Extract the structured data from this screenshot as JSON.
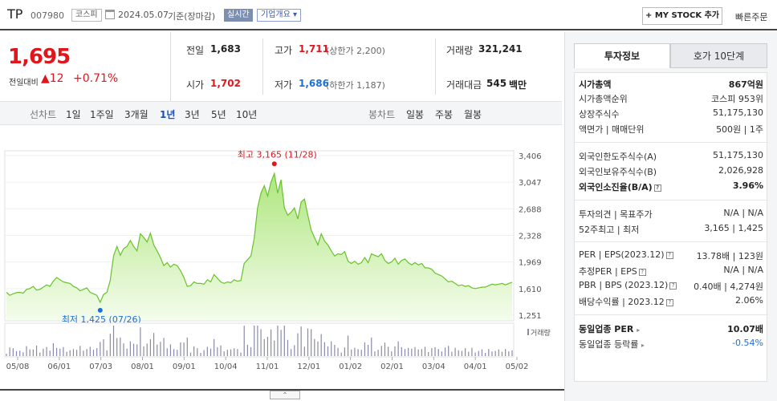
{
  "header": {
    "stock_name": "TP",
    "stock_code": "007980",
    "market": "코스피",
    "date": "2024.05.07",
    "basis": "기준(장마감)",
    "live_label": "실시간",
    "company_info_label": "기업개요",
    "mystock_label": "+ MY STOCK 추가",
    "quick_order_label": "빠른주문"
  },
  "quote": {
    "price": "1,695",
    "change_label": "전일대비",
    "change_amount": "▲12",
    "change_rate": "+0.71%",
    "prev_close_label": "전일",
    "prev_close": "1,683",
    "high_label": "고가",
    "high": "1,711",
    "upper_limit": "(상한가 2,200)",
    "volume_label": "거래량",
    "volume": "321,241",
    "open_label": "시가",
    "open": "1,702",
    "low_label": "저가",
    "low": "1,686",
    "lower_limit": "(하한가 1,187)",
    "trade_value_label": "거래대금",
    "trade_value": "545",
    "trade_value_unit": "백만"
  },
  "periods": {
    "line_chart_label": "선차트",
    "items": [
      "1일",
      "1주일",
      "3개월",
      "1년",
      "3년",
      "5년",
      "10년"
    ],
    "active": "1년",
    "candle_chart_label": "봉차트",
    "candle_items": [
      "일봉",
      "주봉",
      "월봉"
    ]
  },
  "chart_data": {
    "type": "area",
    "y_ticks": [
      "3,406",
      "3,047",
      "2,688",
      "2,328",
      "1,969",
      "1,610",
      "1,251"
    ],
    "ylim": [
      1251,
      3406
    ],
    "x_ticks": [
      "05/08",
      "06/01",
      "07/03",
      "08/01",
      "09/01",
      "10/04",
      "11/01",
      "12/01",
      "01/02",
      "02/01",
      "03/04",
      "04/01",
      "05/02"
    ],
    "max_label": "최고 3,165 (11/28)",
    "min_label": "최저 1,425 (07/26)",
    "volume_label": "거래량",
    "series": [
      {
        "values": [
          1560,
          1520,
          1540,
          1555,
          1560,
          1548,
          1600,
          1610,
          1640,
          1590,
          1600,
          1630,
          1660,
          1640,
          1710,
          1760,
          1730,
          1700,
          1690,
          1680,
          1640,
          1620,
          1580,
          1600,
          1620,
          1560,
          1540,
          1520,
          1425,
          1530,
          1560,
          1720,
          2050,
          2180,
          2060,
          2150,
          2180,
          2260,
          2180,
          2120,
          2350,
          2300,
          2240,
          2360,
          2200,
          2120,
          2030,
          1920,
          1960,
          1900,
          1940,
          1920,
          1850,
          1760,
          1640,
          1650,
          1700,
          1680,
          1680,
          1670,
          1730,
          1700,
          1800,
          1750,
          1700,
          1680,
          1700,
          1690,
          1730,
          1710,
          1720,
          1950,
          2000,
          2050,
          2290,
          2700,
          2900,
          3000,
          2860,
          3050,
          3165,
          2900,
          3080,
          2700,
          2600,
          2640,
          2700,
          2550,
          2780,
          2820,
          2600,
          2400,
          2300,
          2200,
          2350,
          2250,
          2200,
          2120,
          2050,
          2080,
          2070,
          2110,
          1980,
          1950,
          1980,
          1940,
          1960,
          2030,
          1960,
          2080,
          2060,
          2040,
          2080,
          1990,
          1950,
          1970,
          2020,
          1940,
          1990,
          2010,
          1960,
          1930,
          1960,
          1930,
          1950,
          1890,
          1890,
          1870,
          1820,
          1800,
          1780,
          1740,
          1700,
          1710,
          1680,
          1650,
          1660,
          1640,
          1650,
          1620,
          1610,
          1620,
          1630,
          1630,
          1650,
          1670,
          1660,
          1670,
          1680,
          1660,
          1680,
          1695
        ]
      }
    ]
  },
  "collapse_label": "⌃",
  "panel": {
    "tab_active": "투자정보",
    "tab_other": "호가 10단계",
    "market_cap_label": "시가총액",
    "market_cap": "867억원",
    "market_cap_rank_label": "시가총액순위",
    "market_cap_rank": "코스피 953위",
    "listed_shares_label": "상장주식수",
    "listed_shares": "51,175,130",
    "par_label": "액면가 | 매매단위",
    "par": "500원 | 1주",
    "foreign_limit_label": "외국인한도주식수(A)",
    "foreign_limit": "51,175,130",
    "foreign_hold_label": "외국인보유주식수(B)",
    "foreign_hold": "2,026,928",
    "foreign_ratio_label": "외국인소진율(B/A)",
    "foreign_ratio": "3.96%",
    "opinion_label": "투자의견 | 목표주가",
    "opinion": "N/A | N/A",
    "week52_label": "52주최고 | 최저",
    "week52": "3,165 | 1,425",
    "per_label": "PER | EPS(2023.12)",
    "per": "13.78배 | 123원",
    "est_per_label": "추정PER | EPS",
    "est_per": "N/A | N/A",
    "pbr_label": "PBR | BPS (2023.12)",
    "pbr": "0.40배 | 4,274원",
    "dividend_label": "배당수익률 | 2023.12",
    "dividend": "2.06%",
    "industry_per_label": "동일업종 PER",
    "industry_per": "10.07배",
    "industry_rate_label": "동일업종 등락률",
    "industry_rate": "-0.54%"
  }
}
